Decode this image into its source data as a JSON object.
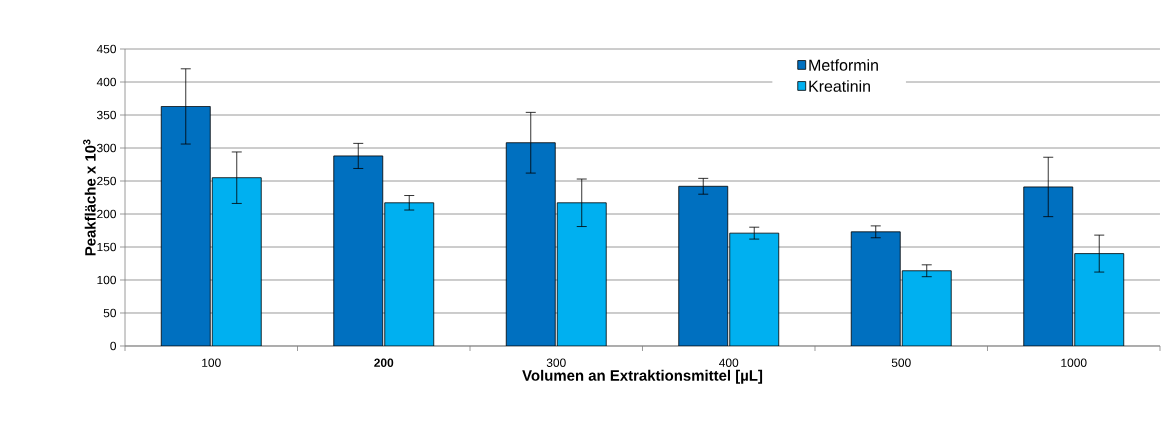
{
  "chart_data": {
    "type": "bar",
    "xlabel": "Volumen an Extraktionsmittel [µL]",
    "ylabel": "Peakfläche x 10$^{3}$",
    "categories": [
      "100",
      "**200**",
      "300",
      "400",
      "500",
      "1000"
    ],
    "series": [
      {
        "name": "Metformin",
        "color": "#0070c0",
        "values": [
          363,
          288,
          308,
          242,
          173,
          241
        ],
        "errors": [
          57,
          19,
          46,
          12,
          9,
          45
        ]
      },
      {
        "name": "Kreatinin",
        "color": "#00b0f0",
        "values": [
          255,
          217,
          217,
          171,
          114,
          140
        ],
        "errors": [
          39,
          11,
          36,
          9,
          9,
          28
        ]
      }
    ],
    "ylim": [
      0,
      450
    ],
    "yticks": [
      0,
      50,
      100,
      150,
      200,
      250,
      300,
      350,
      400,
      450
    ],
    "grid": "y",
    "legend": "top"
  }
}
